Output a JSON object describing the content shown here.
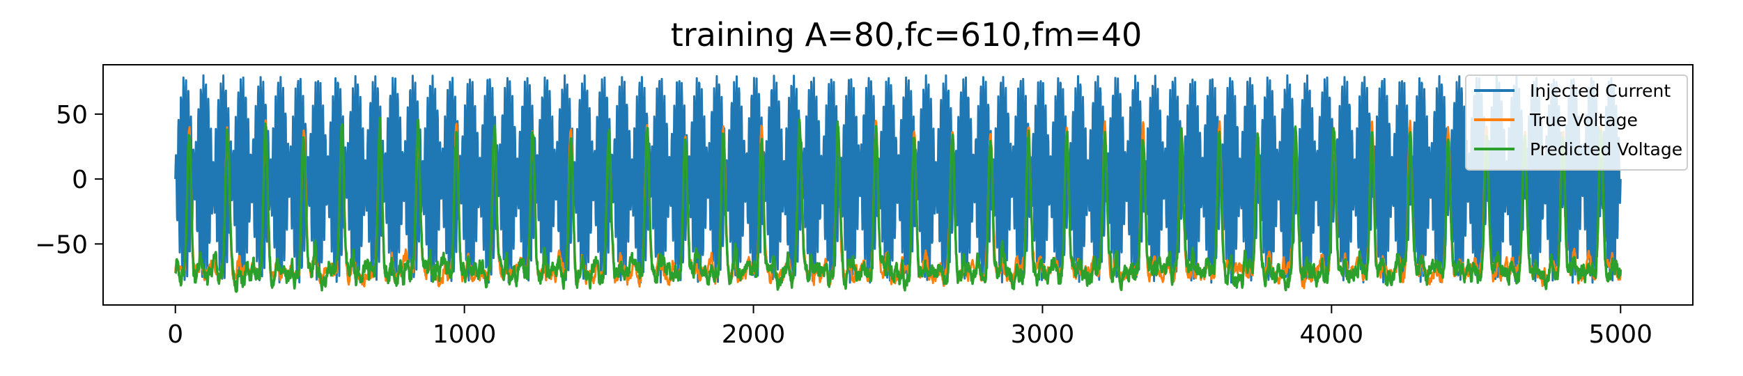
{
  "chart_data": {
    "type": "line",
    "title": "training A=80,fc=610,fm=40",
    "xlabel": "",
    "ylabel": "",
    "xlim": [
      -250,
      5250
    ],
    "ylim": [
      -97,
      88
    ],
    "x_ticks": [
      0,
      1000,
      2000,
      3000,
      4000,
      5000
    ],
    "x_tick_labels": [
      "0",
      "1000",
      "2000",
      "3000",
      "4000",
      "5000"
    ],
    "y_ticks": [
      50,
      0,
      -50
    ],
    "y_tick_labels": [
      "50",
      "0",
      "−50"
    ],
    "grid": false,
    "legend_position": "top-right",
    "n_samples": 5000,
    "series": [
      {
        "name": "Injected Current",
        "color": "#1f77b4",
        "signal": "A*sin(2*pi*fc*t)*|sin(2*pi*fm*t)| style modulated current",
        "amplitude": 80,
        "carrier_cycles_per_1000": 116,
        "envelope_cycles_per_1000": 7.6
      },
      {
        "name": "True Voltage",
        "color": "#ff7f0e",
        "resting": -73,
        "spike_peak": 38,
        "spike_period": 132,
        "first_spike": 48
      },
      {
        "name": "Predicted Voltage",
        "color": "#2ca02c",
        "resting": -73,
        "spike_peak": 37,
        "spike_period": 132,
        "first_spike": 48
      }
    ]
  }
}
